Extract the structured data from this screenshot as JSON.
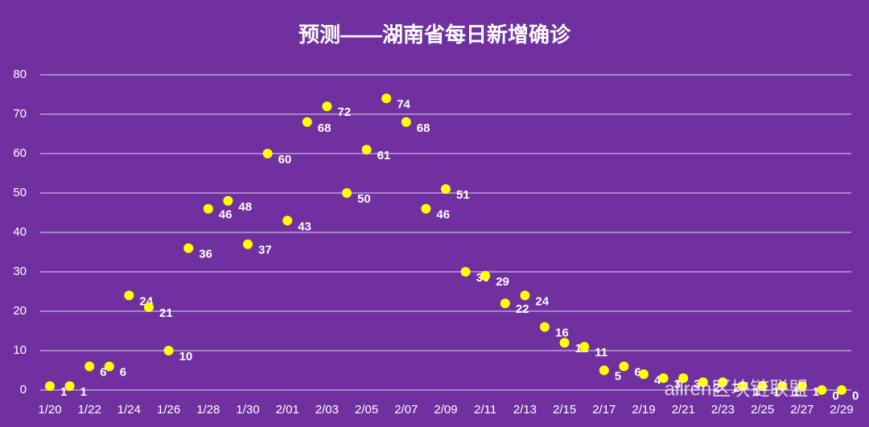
{
  "chart_data": {
    "type": "line",
    "title": "预测——湖南省每日新增确诊",
    "categories": [
      "1/20",
      null,
      "1/22",
      null,
      "1/24",
      null,
      "1/26",
      null,
      "1/28",
      null,
      "1/30",
      null,
      "2/01",
      null,
      "2/03",
      null,
      "2/05",
      null,
      "2/07",
      null,
      "2/09",
      null,
      "2/11",
      null,
      "2/13",
      null,
      "2/15",
      null,
      "2/17",
      null,
      "2/19",
      null,
      "2/21",
      null,
      "2/23",
      null,
      "2/25",
      null,
      "2/27",
      null,
      "2/29"
    ],
    "series": [
      {
        "name": "湖南省每日新增确诊",
        "color": "#ffff00",
        "values": [
          1,
          1,
          6,
          6,
          24,
          21,
          10,
          36,
          46,
          48,
          37,
          60,
          43,
          68,
          72,
          50,
          61,
          74,
          68,
          46,
          51,
          30,
          29,
          22,
          24,
          16,
          12,
          11,
          5,
          6,
          4,
          3,
          3,
          2,
          2,
          1,
          1,
          1,
          1,
          0,
          0
        ]
      }
    ],
    "ylim": [
      0,
      80
    ],
    "yticks": [
      0,
      10,
      20,
      30,
      40,
      50,
      60,
      70,
      80
    ],
    "grid": true,
    "watermark": "allren区块链联盟"
  }
}
